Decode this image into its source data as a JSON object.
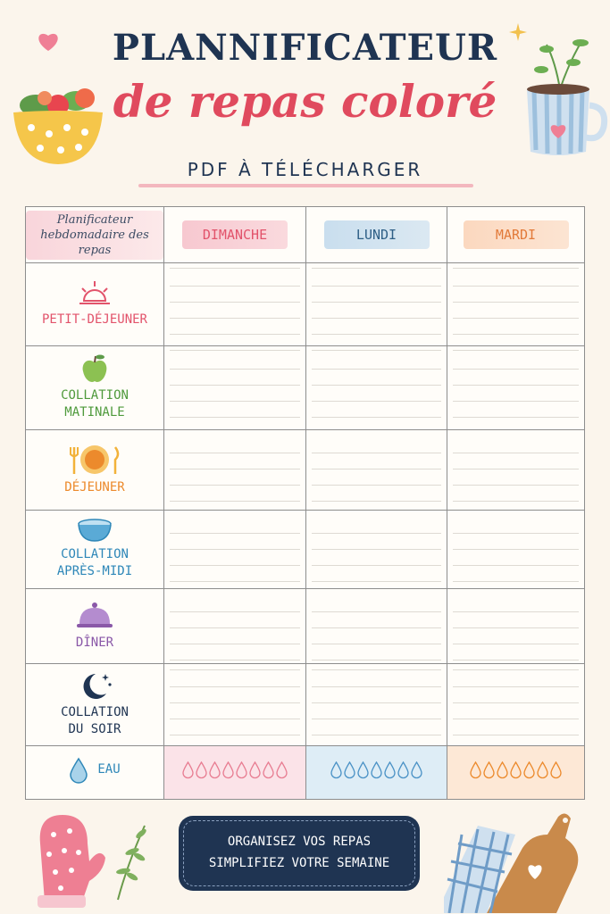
{
  "header": {
    "title": "PLANNIFICATEUR",
    "subtitle": "de repas coloré",
    "tagline": "PDF À TÉLÉCHARGER"
  },
  "table": {
    "corner_label": "Planificateur hebdomadaire des repas",
    "days": [
      {
        "label": "DIMANCHE",
        "color": "#e2536b",
        "bg": "#f7c8d0"
      },
      {
        "label": "LUNDI",
        "color": "#2e5f86",
        "bg": "#c9deee"
      },
      {
        "label": "MARDI",
        "color": "#e27a39",
        "bg": "#fbd8bf"
      }
    ],
    "meals": [
      {
        "line1": "PETIT-DÉJEUNER",
        "line2": "",
        "icon": "sunrise-icon",
        "color": "#e2536b"
      },
      {
        "line1": "COLLATION",
        "line2": "MATINALE",
        "icon": "apple-icon",
        "color": "#4f9a3c"
      },
      {
        "line1": "DÉJEUNER",
        "line2": "",
        "icon": "plate-cutlery-icon",
        "color": "#ec8a2c"
      },
      {
        "line1": "COLLATION",
        "line2": "APRÈS-MIDI",
        "icon": "bowl-icon",
        "color": "#2e87b8"
      },
      {
        "line1": "DÎNER",
        "line2": "",
        "icon": "cloche-icon",
        "color": "#8a58a8"
      },
      {
        "line1": "COLLATION",
        "line2": "DU SOIR",
        "icon": "moon-stars-icon",
        "color": "#1f3452"
      }
    ],
    "water": {
      "label": "EAU",
      "icon": "water-drop-icon",
      "drops": [
        8,
        7,
        7
      ],
      "drop_colors": [
        "#e87d92",
        "#4a92c6",
        "#ec8a2c"
      ],
      "cell_bgs": [
        "#fbe3e8",
        "#deedf6",
        "#fde8d6"
      ]
    }
  },
  "banner": {
    "line1": "ORGANISEZ VOS REPAS",
    "line2": "SIMPLIFIEZ VOTRE SEMAINE"
  }
}
